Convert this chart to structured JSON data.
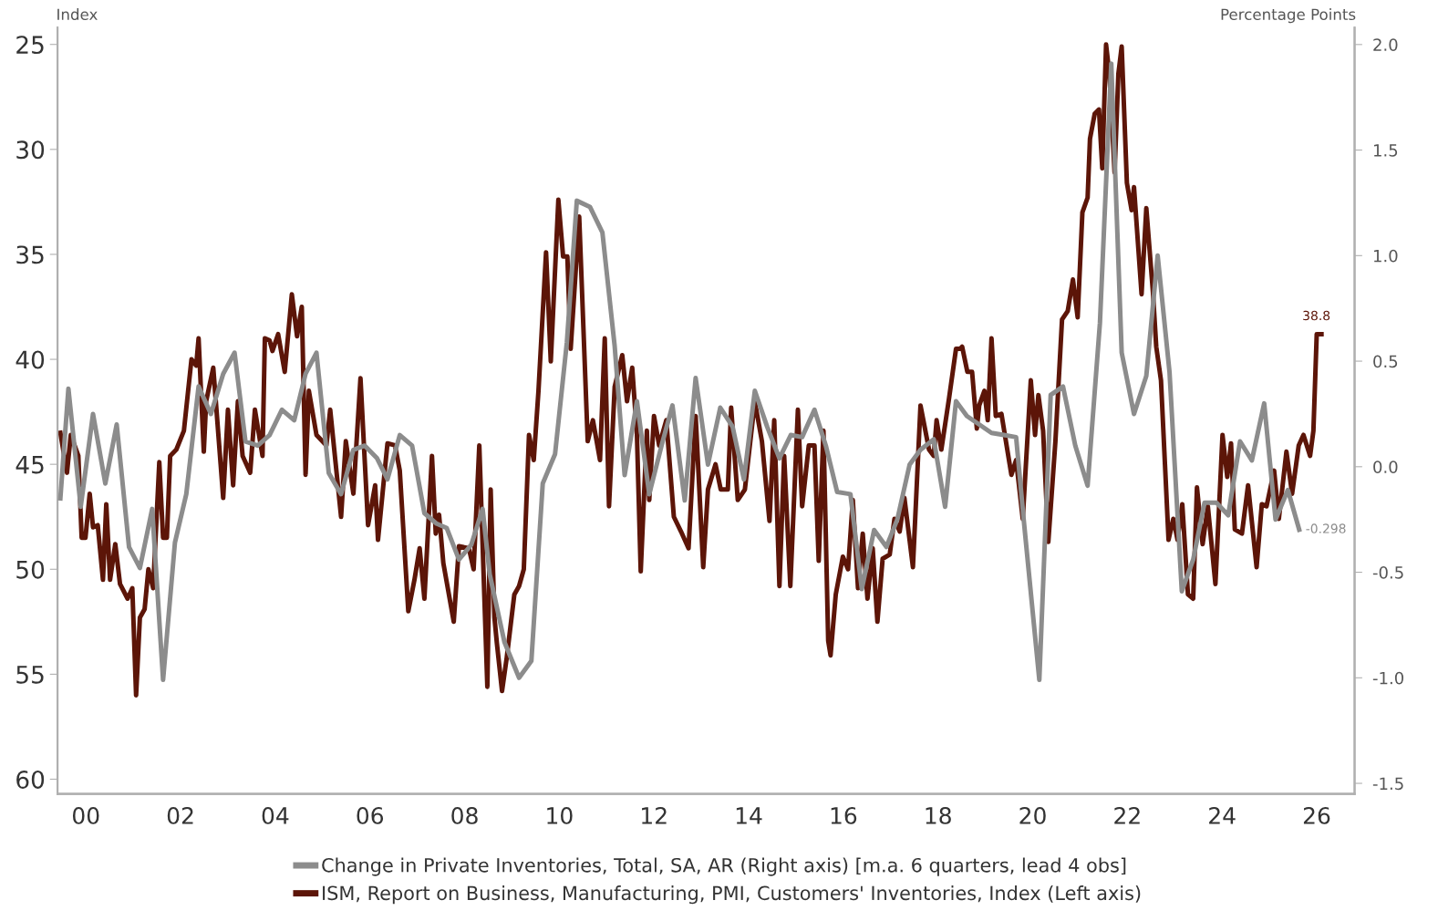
{
  "chart_data": {
    "type": "line",
    "ylabel": "Index",
    "y2label": "Percentage Points",
    "xlim": [
      1999.4,
      2026.8
    ],
    "xticks": [
      {
        "value": 2000,
        "label": "00"
      },
      {
        "value": 2002,
        "label": "02"
      },
      {
        "value": 2004,
        "label": "04"
      },
      {
        "value": 2006,
        "label": "06"
      },
      {
        "value": 2008,
        "label": "08"
      },
      {
        "value": 2010,
        "label": "10"
      },
      {
        "value": 2012,
        "label": "12"
      },
      {
        "value": 2014,
        "label": "14"
      },
      {
        "value": 2016,
        "label": "16"
      },
      {
        "value": 2018,
        "label": "18"
      },
      {
        "value": 2020,
        "label": "20"
      },
      {
        "value": 2022,
        "label": "22"
      },
      {
        "value": 2024,
        "label": "24"
      },
      {
        "value": 2026,
        "label": "26"
      }
    ],
    "ylim": [
      60.7,
      24.2
    ],
    "yticks": [
      25,
      30,
      35,
      40,
      45,
      50,
      55,
      60
    ],
    "y2lim": [
      -1.55,
      2.08
    ],
    "y2ticks": [
      {
        "value": 2,
        "label": "2.0"
      },
      {
        "value": 1.5,
        "label": "1.5"
      },
      {
        "value": 1,
        "label": "1.0"
      },
      {
        "value": 0.5,
        "label": "0.5"
      },
      {
        "value": 0,
        "label": "0.0"
      },
      {
        "value": -0.5,
        "label": "-0.5"
      },
      {
        "value": -1,
        "label": "-1.0"
      },
      {
        "value": -1.5,
        "label": "-1.5"
      }
    ],
    "legend": "bottom",
    "grid": false,
    "marker": "none",
    "line_style": "solid",
    "series": [
      {
        "name": "Change in Private Inventories, Total, SA, AR (Right axis) [m.a. 6 quarters, lead 4 obs]",
        "color": "#8c8c8c",
        "axis": "y2",
        "x": [
          1999.46,
          1999.63,
          1999.89,
          2000.15,
          2000.41,
          2000.65,
          2000.91,
          2001.14,
          2001.4,
          2001.63,
          2001.88,
          2002.12,
          2002.38,
          2002.64,
          2002.9,
          2003.14,
          2003.37,
          2003.63,
          2003.88,
          2004.14,
          2004.4,
          2004.64,
          2004.87,
          2005.13,
          2005.39,
          2005.65,
          2005.89,
          2006.15,
          2006.37,
          2006.63,
          2006.89,
          2007.15,
          2007.41,
          2007.62,
          2007.88,
          2008.14,
          2008.38,
          2008.53,
          2008.84,
          2009.15,
          2009.41,
          2009.65,
          2009.91,
          2010.16,
          2010.37,
          2010.65,
          2010.91,
          2011.17,
          2011.38,
          2011.64,
          2011.9,
          2012.16,
          2012.39,
          2012.65,
          2012.88,
          2013.14,
          2013.4,
          2013.66,
          2013.9,
          2014.13,
          2014.39,
          2014.65,
          2014.89,
          2015.13,
          2015.39,
          2015.63,
          2015.87,
          2016.15,
          2016.39,
          2016.65,
          2016.91,
          2017.14,
          2017.4,
          2017.63,
          2017.91,
          2018.15,
          2018.38,
          2018.61,
          2018.87,
          2019.13,
          2019.39,
          2019.65,
          2019.81,
          2020.14,
          2020.38,
          2020.64,
          2020.9,
          2021.16,
          2021.42,
          2021.66,
          2021.88,
          2022.14,
          2022.4,
          2022.64,
          2022.89,
          2023.15,
          2023.39,
          2023.63,
          2023.88,
          2024.13,
          2024.38,
          2024.63,
          2024.89,
          2025.13,
          2025.39,
          2025.63
        ],
        "values": [
          -0.15,
          0.37,
          -0.19,
          0.25,
          -0.08,
          0.2,
          -0.38,
          -0.48,
          -0.2,
          -1.01,
          -0.36,
          -0.13,
          0.38,
          0.25,
          0.44,
          0.54,
          0.12,
          0.1,
          0.15,
          0.27,
          0.22,
          0.44,
          0.54,
          -0.03,
          -0.13,
          0.08,
          0.1,
          0.04,
          -0.06,
          0.15,
          0.1,
          -0.22,
          -0.27,
          -0.29,
          -0.44,
          -0.37,
          -0.2,
          -0.51,
          -0.83,
          -1.0,
          -0.92,
          -0.08,
          0.06,
          0.59,
          1.26,
          1.23,
          1.11,
          0.57,
          -0.04,
          0.31,
          -0.13,
          0.1,
          0.29,
          -0.16,
          0.42,
          0.01,
          0.28,
          0.19,
          -0.06,
          0.36,
          0.19,
          0.04,
          0.15,
          0.14,
          0.27,
          0.1,
          -0.12,
          -0.13,
          -0.58,
          -0.3,
          -0.38,
          -0.25,
          0.01,
          0.08,
          0.13,
          -0.19,
          0.31,
          0.24,
          0.2,
          0.16,
          0.15,
          0.14,
          -0.25,
          -1.01,
          0.34,
          0.38,
          0.1,
          -0.09,
          0.68,
          1.91,
          0.54,
          0.25,
          0.43,
          1.0,
          0.45,
          -0.59,
          -0.44,
          -0.17,
          -0.17,
          -0.23,
          0.12,
          0.03,
          0.3,
          -0.25,
          -0.11,
          -0.298
        ],
        "value_labels": [
          null,
          null,
          null,
          null,
          null,
          null,
          null,
          null,
          null,
          null,
          null,
          null,
          null,
          null,
          null,
          null,
          null,
          null,
          null,
          null,
          null,
          null,
          null,
          null,
          null,
          null,
          null,
          null,
          null,
          null,
          null,
          null,
          null,
          null,
          null,
          null,
          null,
          null,
          null,
          null,
          null,
          null,
          null,
          null,
          null,
          null,
          null,
          null,
          null,
          null,
          null,
          null,
          null,
          null,
          null,
          null,
          null,
          null,
          null,
          null,
          null,
          null,
          null,
          null,
          null,
          null,
          null,
          null,
          null,
          null,
          null,
          null,
          null,
          null,
          null,
          null,
          null,
          null,
          null,
          null,
          null,
          null,
          null,
          null,
          null,
          null,
          null,
          null,
          null,
          null,
          null,
          null,
          null,
          null,
          null,
          null,
          null,
          null,
          null,
          null,
          null,
          null,
          null,
          null,
          null,
          "-0.298"
        ]
      },
      {
        "name": "ISM, Report on Business, Manufacturing, PMI, Customers' Inventories, Index (Left axis)",
        "color": "#5c1508",
        "axis": "y",
        "x": [
          1999.46,
          1999.6,
          1999.68,
          1999.84,
          1999.91,
          1999.99,
          2000.08,
          2000.15,
          2000.25,
          2000.36,
          2000.43,
          2000.51,
          2000.62,
          2000.72,
          2000.88,
          2000.98,
          2001.06,
          2001.14,
          2001.24,
          2001.32,
          2001.42,
          2001.55,
          2001.63,
          2001.71,
          2001.78,
          2001.91,
          2002.07,
          2002.23,
          2002.33,
          2002.38,
          2002.49,
          2002.54,
          2002.69,
          2002.9,
          2003.0,
          2003.11,
          2003.21,
          2003.31,
          2003.47,
          2003.57,
          2003.73,
          2003.78,
          2003.88,
          2003.94,
          2004.06,
          2004.2,
          2004.35,
          2004.46,
          2004.56,
          2004.64,
          2004.71,
          2004.87,
          2005.08,
          2005.16,
          2005.39,
          2005.49,
          2005.65,
          2005.8,
          2005.96,
          2006.11,
          2006.17,
          2006.37,
          2006.53,
          2006.63,
          2006.81,
          2006.94,
          2007.05,
          2007.15,
          2007.31,
          2007.39,
          2007.46,
          2007.55,
          2007.77,
          2007.88,
          2008.09,
          2008.19,
          2008.31,
          2008.48,
          2008.55,
          2008.63,
          2008.68,
          2008.79,
          2008.89,
          2009.05,
          2009.15,
          2009.25,
          2009.36,
          2009.46,
          2009.56,
          2009.72,
          2009.82,
          2009.98,
          2010.08,
          2010.17,
          2010.24,
          2010.42,
          2010.6,
          2010.71,
          2010.86,
          2010.96,
          2011.05,
          2011.17,
          2011.33,
          2011.43,
          2011.54,
          2011.64,
          2011.72,
          2011.85,
          2011.9,
          2012.0,
          2012.11,
          2012.26,
          2012.42,
          2012.57,
          2012.73,
          2012.88,
          2013.04,
          2013.14,
          2013.3,
          2013.41,
          2013.56,
          2013.63,
          2013.77,
          2013.92,
          2014.13,
          2014.28,
          2014.44,
          2014.54,
          2014.65,
          2014.75,
          2014.88,
          2015.04,
          2015.13,
          2015.27,
          2015.39,
          2015.48,
          2015.58,
          2015.68,
          2015.73,
          2015.84,
          2015.99,
          2016.1,
          2016.2,
          2016.31,
          2016.41,
          2016.51,
          2016.62,
          2016.72,
          2016.83,
          2016.98,
          2017.08,
          2017.19,
          2017.29,
          2017.47,
          2017.63,
          2017.81,
          2017.91,
          2017.97,
          2018.07,
          2018.23,
          2018.38,
          2018.47,
          2018.51,
          2018.62,
          2018.72,
          2018.82,
          2018.87,
          2018.98,
          2019.05,
          2019.13,
          2019.22,
          2019.34,
          2019.55,
          2019.65,
          2019.79,
          2019.96,
          2020.05,
          2020.12,
          2020.22,
          2020.33,
          2020.48,
          2020.62,
          2020.74,
          2020.85,
          2020.95,
          2021.05,
          2021.16,
          2021.21,
          2021.31,
          2021.4,
          2021.47,
          2021.55,
          2021.62,
          2021.73,
          2021.81,
          2021.88,
          2021.99,
          2022.09,
          2022.14,
          2022.3,
          2022.4,
          2022.54,
          2022.61,
          2022.71,
          2022.87,
          2022.97,
          2023.06,
          2023.16,
          2023.28,
          2023.39,
          2023.47,
          2023.59,
          2023.7,
          2023.86,
          2024.01,
          2024.11,
          2024.19,
          2024.27,
          2024.42,
          2024.55,
          2024.73,
          2024.84,
          2024.94,
          2025.1,
          2025.2,
          2025.36,
          2025.48,
          2025.62,
          2025.72,
          2025.86,
          2025.93,
          2026.0,
          2026.1
        ],
        "values": [
          43.5,
          45.4,
          43.6,
          44.6,
          48.5,
          48.5,
          46.4,
          48.0,
          47.9,
          50.5,
          46.9,
          50.5,
          48.8,
          50.7,
          51.4,
          50.9,
          56.0,
          52.3,
          51.9,
          50.0,
          50.9,
          44.9,
          48.5,
          48.5,
          44.6,
          44.3,
          43.4,
          40.0,
          40.3,
          39.0,
          44.4,
          42.0,
          40.4,
          46.6,
          42.4,
          46.0,
          42.0,
          44.6,
          45.4,
          42.4,
          44.6,
          39.0,
          39.1,
          39.6,
          38.8,
          40.6,
          36.9,
          38.9,
          37.5,
          45.5,
          41.5,
          43.6,
          44.1,
          42.4,
          47.5,
          43.9,
          46.4,
          40.9,
          47.9,
          46.0,
          48.6,
          44.0,
          44.1,
          45.3,
          52.0,
          50.5,
          49.0,
          51.4,
          44.6,
          48.3,
          47.4,
          49.7,
          52.5,
          48.9,
          49.0,
          50.0,
          44.1,
          55.6,
          46.2,
          52.3,
          53.5,
          55.8,
          54.2,
          51.2,
          50.8,
          50.0,
          43.6,
          44.8,
          41.5,
          34.9,
          40.1,
          32.4,
          35.1,
          35.1,
          39.5,
          33.2,
          43.9,
          42.9,
          44.8,
          39.0,
          47.0,
          41.3,
          39.8,
          42.0,
          40.4,
          43.6,
          50.1,
          43.4,
          46.7,
          42.7,
          44.1,
          42.9,
          47.5,
          48.2,
          49.0,
          42.7,
          49.9,
          46.2,
          45.0,
          46.2,
          46.2,
          42.3,
          46.7,
          46.2,
          42.0,
          43.9,
          47.7,
          42.9,
          50.8,
          44.6,
          50.8,
          42.4,
          47.0,
          44.1,
          44.1,
          49.6,
          43.4,
          53.4,
          54.1,
          51.2,
          49.4,
          50.0,
          46.7,
          50.9,
          48.3,
          51.4,
          49.0,
          52.5,
          49.5,
          49.3,
          47.6,
          48.2,
          46.6,
          49.9,
          42.2,
          44.3,
          44.6,
          42.9,
          44.3,
          41.9,
          39.5,
          39.5,
          39.4,
          40.6,
          40.6,
          43.3,
          42.2,
          41.5,
          42.9,
          39.0,
          42.7,
          42.6,
          45.5,
          44.8,
          47.6,
          41.0,
          43.6,
          41.7,
          43.4,
          48.7,
          43.9,
          38.1,
          37.7,
          36.2,
          38.0,
          33.0,
          32.3,
          29.5,
          28.3,
          28.1,
          30.9,
          25.0,
          26.4,
          31.1,
          26.4,
          25.1,
          31.6,
          32.9,
          31.8,
          36.9,
          32.8,
          36.8,
          39.4,
          41.0,
          48.6,
          47.6,
          48.6,
          46.9,
          51.2,
          51.4,
          46.1,
          48.8,
          47.0,
          50.7,
          43.6,
          45.6,
          44.0,
          48.1,
          48.3,
          46.0,
          49.9,
          46.9,
          47.0,
          45.3,
          47.6,
          44.4,
          46.4,
          44.1,
          43.6,
          44.6,
          43.4,
          38.8,
          38.8
        ],
        "value_labels": [
          null,
          null,
          null,
          null,
          null,
          null,
          null,
          null,
          null,
          null,
          null,
          null,
          null,
          null,
          null,
          null,
          null,
          null,
          null,
          null,
          null,
          null,
          null,
          null,
          null,
          null,
          null,
          null,
          null,
          null,
          null,
          null,
          null,
          null,
          null,
          null,
          null,
          null,
          null,
          null,
          null,
          null,
          null,
          null,
          null,
          null,
          null,
          null,
          null,
          null,
          null,
          null,
          null,
          null,
          null,
          null,
          null,
          null,
          null,
          null,
          null,
          null,
          null,
          null,
          null,
          null,
          null,
          null,
          null,
          null,
          null,
          null,
          null,
          null,
          null,
          null,
          null,
          null,
          null,
          null,
          null,
          null,
          null,
          null,
          null,
          null,
          null,
          null,
          null,
          null,
          null,
          null,
          null,
          null,
          null,
          null,
          null,
          null,
          null,
          null,
          null,
          null,
          null,
          null,
          null,
          null,
          null,
          null,
          null,
          null,
          null,
          null,
          null,
          null,
          null,
          null,
          null,
          null,
          null,
          null,
          null,
          null,
          null,
          null,
          null,
          null,
          null,
          null,
          null,
          null,
          null,
          null,
          null,
          null,
          null,
          null,
          null,
          null,
          null,
          null,
          null,
          null,
          null,
          null,
          null,
          null,
          null,
          null,
          null,
          null,
          null,
          null,
          null,
          null,
          null,
          null,
          null,
          null,
          null,
          null,
          null,
          null,
          null,
          null,
          null,
          null,
          null,
          null,
          null,
          null,
          null,
          null,
          null,
          null,
          null,
          null,
          null,
          null,
          null,
          null,
          null,
          null,
          null,
          null,
          null,
          null,
          null,
          null,
          null,
          null,
          null,
          null,
          null,
          null,
          null,
          null,
          null,
          null,
          null,
          null,
          null,
          null,
          null,
          null,
          null,
          null,
          null,
          null,
          null,
          null,
          null,
          null,
          null,
          null,
          null,
          null,
          null,
          null,
          null,
          null,
          null,
          null,
          null,
          null,
          null,
          null,
          null,
          null,
          null,
          null,
          null,
          null,
          "38.8"
        ]
      }
    ]
  }
}
